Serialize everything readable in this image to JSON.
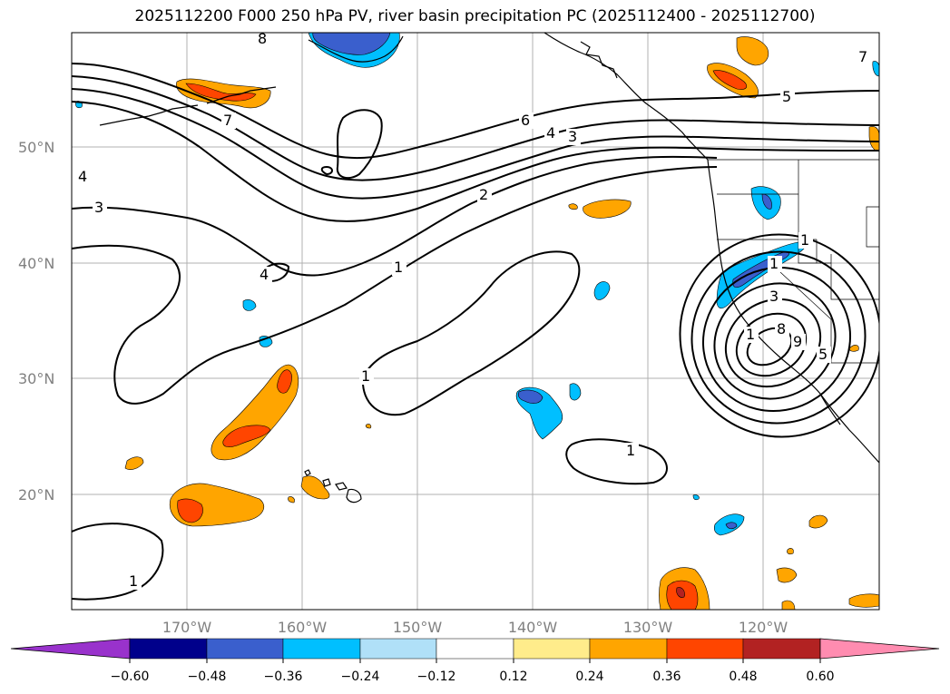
{
  "title": "2025112200 F000 250 hPa PV, river basin precipitation PC (2025112400 - 2025112700)",
  "lat_labels": [
    "50°N",
    "40°N",
    "30°N",
    "20°N"
  ],
  "lon_labels": [
    "170°W",
    "160°W",
    "150°W",
    "140°W",
    "130°W",
    "120°W"
  ],
  "contour_labels": [
    "8",
    "7",
    "7",
    "6",
    "5",
    "4",
    "4",
    "3",
    "3",
    "2",
    "1",
    "1",
    "1",
    "1",
    "1",
    "4",
    "1",
    "1",
    "3",
    "8",
    "9",
    "5"
  ],
  "colorbar": {
    "ticks": [
      "−0.60",
      "−0.48",
      "−0.36",
      "−0.24",
      "−0.12",
      "0.12",
      "0.24",
      "0.36",
      "0.48",
      "0.60"
    ],
    "colors": [
      "#9932cc",
      "#00008b",
      "#3a5fcd",
      "#00bfff",
      "#b0e0f8",
      "#ffffff",
      "#ffec8b",
      "#ffa500",
      "#ff4500",
      "#b22222",
      "#ff8cb0"
    ]
  },
  "fill_colors": {
    "orange": "#ffa500",
    "red_orange": "#ff4500",
    "dark_red": "#b22222",
    "light_orange": "#ffa500",
    "sky_blue": "#00bfff",
    "royal_blue": "#3a5fcd"
  }
}
